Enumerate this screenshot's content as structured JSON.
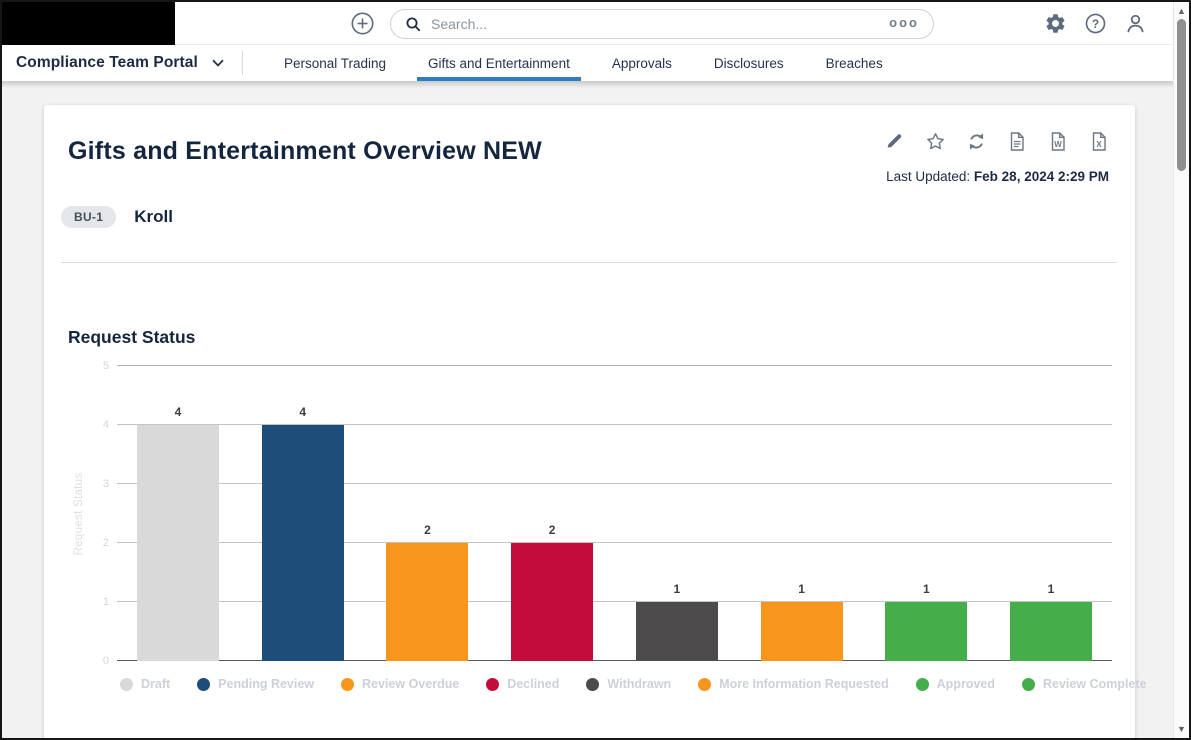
{
  "topbar": {
    "search": {
      "placeholder": "Search...",
      "overflow_text": "ooo"
    },
    "icons": {
      "add": "plus-circle",
      "settings": "gear",
      "help": "question-circle",
      "account": "person"
    }
  },
  "navbar": {
    "portal": {
      "label": "Compliance Team Portal"
    },
    "tabs": [
      {
        "label": "Personal Trading",
        "active": false
      },
      {
        "label": "Gifts and Entertainment",
        "active": true
      },
      {
        "label": "Approvals",
        "active": false
      },
      {
        "label": "Disclosures",
        "active": false
      },
      {
        "label": "Breaches",
        "active": false
      }
    ],
    "active_tab_color": "#2e7bc4"
  },
  "report": {
    "title": "Gifts and Entertainment Overview NEW",
    "last_updated_label": "Last Updated:",
    "last_updated_value": "Feb 28, 2024 2:29 PM",
    "badge": "BU-1",
    "entity": "Kroll",
    "toolbar_icons": [
      "edit-pencil",
      "favorite-star",
      "refresh",
      "export-pdf",
      "export-word",
      "export-excel"
    ]
  },
  "chart_data": {
    "type": "bar",
    "title": "Request Status",
    "xlabel": "",
    "ylabel": "Request Status",
    "ylim": [
      0,
      5
    ],
    "yticks": [
      0,
      1,
      2,
      3,
      4,
      5
    ],
    "grid": true,
    "legend_position": "bottom",
    "categories": [
      "Draft",
      "Pending Review",
      "Review Overdue",
      "Declined",
      "Withdrawn",
      "More Information Requested",
      "Approved",
      "Review Complete"
    ],
    "values": [
      4,
      4,
      2,
      2,
      1,
      1,
      1,
      1
    ],
    "colors": [
      "#d9d9d9",
      "#1c4e79",
      "#f8951d",
      "#c40c3c",
      "#4d4a4b",
      "#f8951d",
      "#45ad49",
      "#45ad49"
    ],
    "bar_label_color": "#3d3d3d"
  }
}
